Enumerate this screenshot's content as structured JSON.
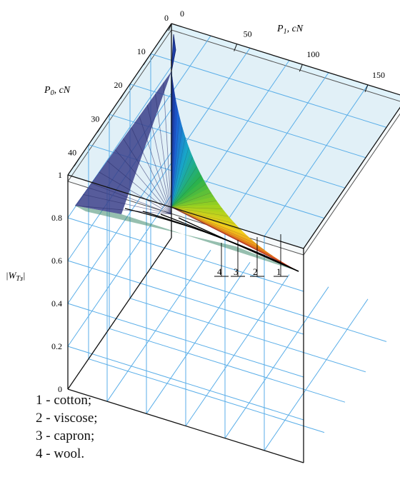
{
  "chart_data": {
    "type": "surface3d",
    "x_axis": {
      "label_main": "P",
      "label_sub": "1",
      "label_unit": ", cN",
      "ticks": [
        "0",
        "50",
        "100",
        "150"
      ],
      "range": [
        0,
        180
      ]
    },
    "y_axis": {
      "label_main": "P",
      "label_sub": "0",
      "label_unit": ", cN",
      "ticks": [
        "0",
        "10",
        "20",
        "30",
        "40"
      ],
      "range": [
        0,
        45
      ]
    },
    "z_axis": {
      "label_main": "|W",
      "label_sub": "Tз",
      "label_end": "|",
      "ticks": [
        "0",
        "0.2",
        "0.4",
        "0.6",
        "0.8",
        "1"
      ],
      "range": [
        0,
        1
      ]
    },
    "curve_labels": [
      "4",
      "3",
      "2",
      "1"
    ],
    "colormap": [
      "#1a237e",
      "#1e5fd6",
      "#18a7c8",
      "#2bb24c",
      "#9fd21e",
      "#f2d21a",
      "#f08a1c",
      "#e0301e"
    ],
    "grid": true
  },
  "legend": {
    "items": [
      "1 - cotton;",
      "2 - viscose;",
      "3 - capron;",
      "4 - wool."
    ]
  }
}
